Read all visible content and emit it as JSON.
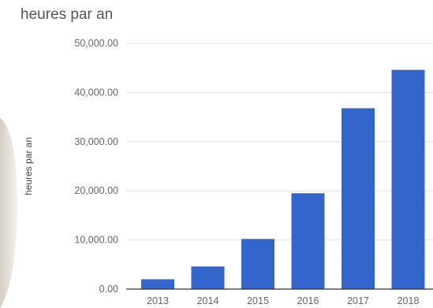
{
  "chart_data": {
    "type": "bar",
    "title": "heures par an",
    "ylabel": "heures par an",
    "xlabel": "",
    "categories": [
      "2013",
      "2014",
      "2015",
      "2016",
      "2017",
      "2018"
    ],
    "values": [
      2000,
      4600,
      10200,
      19500,
      36800,
      44600
    ],
    "ylim": [
      0,
      50000
    ],
    "yticks": [
      "0.00",
      "10,000.00",
      "20,000.00",
      "30,000.00",
      "40,000.00",
      "50,000.00"
    ],
    "grid": true,
    "legend": "none",
    "bar_color": "#3366cc"
  },
  "colors": {
    "gridline": "#e3e3e3",
    "baseline": "#333333",
    "photo_edge": "#d8d2c8"
  }
}
